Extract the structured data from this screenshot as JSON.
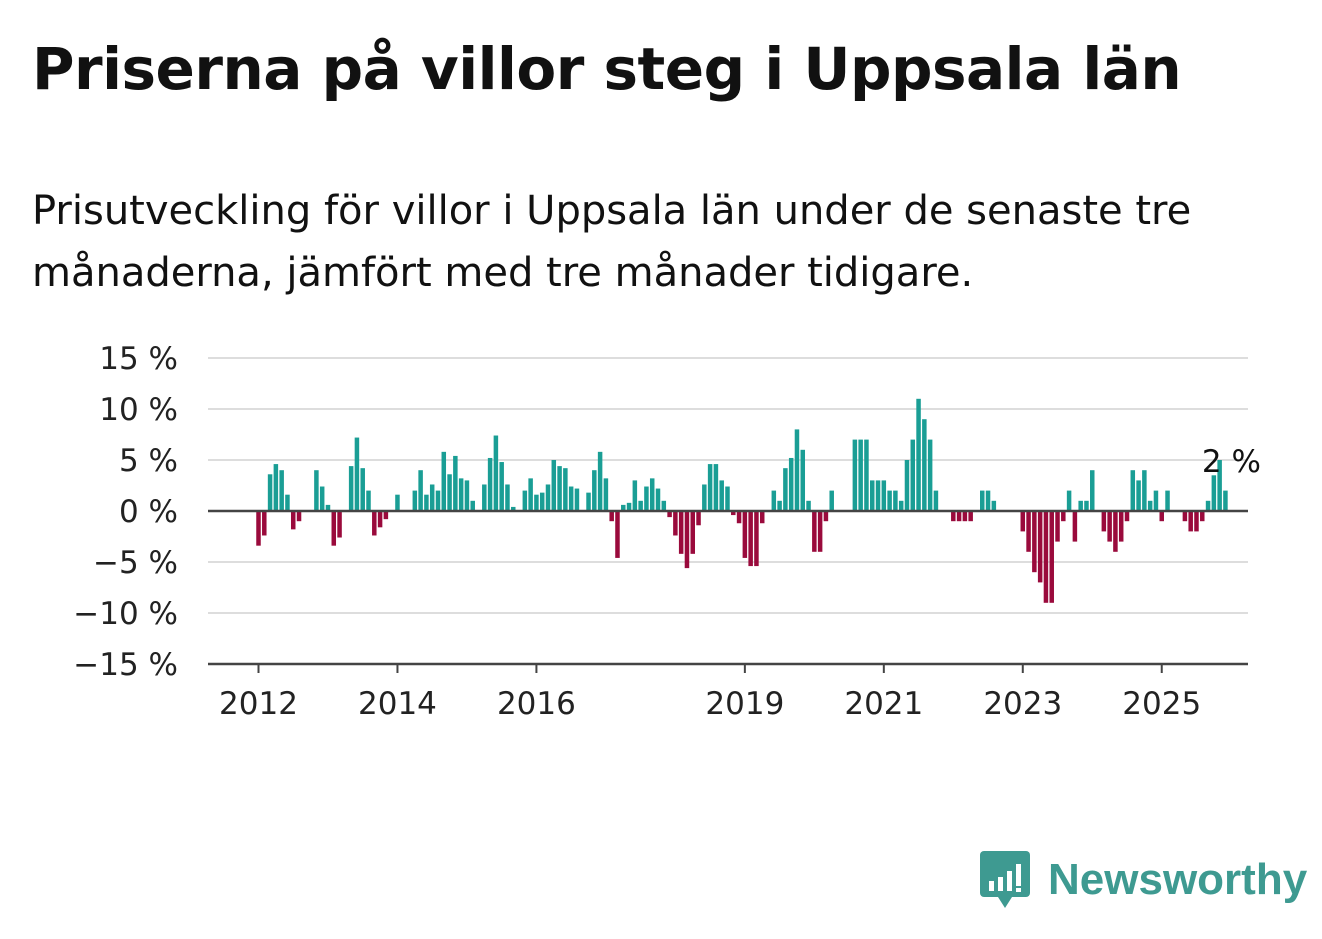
{
  "title": "Priserna på villor steg i Uppsala län",
  "subtitle": "Prisutveckling för villor i Uppsala län under de senaste tre månaderna, jämfört med tre månader tidigare.",
  "logo": {
    "text": "Newsworthy",
    "icon": "newsworthy-chart-bubble-icon",
    "color": "#3e9a91"
  },
  "colors": {
    "positive": "#1a9e95",
    "negative": "#9a0a3c",
    "grid": "#dddddd",
    "zero": "#444444"
  },
  "chart_data": {
    "type": "bar",
    "x_start": "2012-01",
    "x_interval": "month",
    "x_tick_labels": [
      "2012",
      "2014",
      "2016",
      "2019",
      "2021",
      "2023",
      "2025"
    ],
    "y_ticks": [
      15,
      10,
      5,
      0,
      -5,
      -10,
      -15
    ],
    "y_tick_labels": [
      "15 %",
      "10 %",
      "5 %",
      "0 %",
      "−5 %",
      "−10 %",
      "−15 %"
    ],
    "ylim": [
      -15,
      15
    ],
    "grid": true,
    "annotation": "2 %",
    "values": [
      -3.4,
      -2.4,
      3.6,
      4.6,
      4.0,
      1.6,
      -1.8,
      -1.0,
      0,
      0,
      4.0,
      2.4,
      0.6,
      -3.4,
      -2.6,
      0,
      4.4,
      7.2,
      4.2,
      2.0,
      -2.4,
      -1.6,
      -0.8,
      0,
      1.6,
      0,
      0,
      2.0,
      4.0,
      1.6,
      2.6,
      2.0,
      5.8,
      3.6,
      5.4,
      3.2,
      3.0,
      1.0,
      0,
      2.6,
      5.2,
      7.4,
      4.8,
      2.6,
      0.4,
      0,
      2.0,
      3.2,
      1.6,
      1.8,
      2.6,
      5.0,
      4.4,
      4.2,
      2.4,
      2.2,
      0,
      1.8,
      4.0,
      5.8,
      3.2,
      -1.0,
      -4.6,
      0.6,
      0.8,
      3.0,
      1.0,
      2.4,
      3.2,
      2.2,
      1.0,
      -0.6,
      -2.4,
      -4.2,
      -5.6,
      -4.2,
      -1.4,
      2.6,
      4.6,
      4.6,
      3.0,
      2.4,
      -0.4,
      -1.2,
      -4.6,
      -5.4,
      -5.4,
      -1.2,
      0,
      2.0,
      1.0,
      4.2,
      5.2,
      8.0,
      6.0,
      1.0,
      -4.0,
      -4.0,
      -1.0,
      2.0,
      0,
      0,
      0,
      7.0,
      7.0,
      7.0,
      3.0,
      3.0,
      3.0,
      2.0,
      2.0,
      1.0,
      5.0,
      7.0,
      11.0,
      9.0,
      7.0,
      2.0,
      0,
      0,
      -1.0,
      -1.0,
      -1.0,
      -1.0,
      0,
      2.0,
      2.0,
      1.0,
      0,
      0,
      0,
      0,
      -2.0,
      -4.0,
      -6.0,
      -7.0,
      -9.0,
      -9.0,
      -3.0,
      -1.0,
      2.0,
      -3.0,
      1.0,
      1.0,
      4.0,
      0,
      -2.0,
      -3.0,
      -4.0,
      -3.0,
      -1.0,
      4.0,
      3.0,
      4.0,
      1.0,
      2.0,
      -1.0,
      2.0,
      0,
      0,
      -1.0,
      -2.0,
      -2.0,
      -1.0,
      1.0,
      3.5,
      5.0,
      2.0
    ]
  }
}
